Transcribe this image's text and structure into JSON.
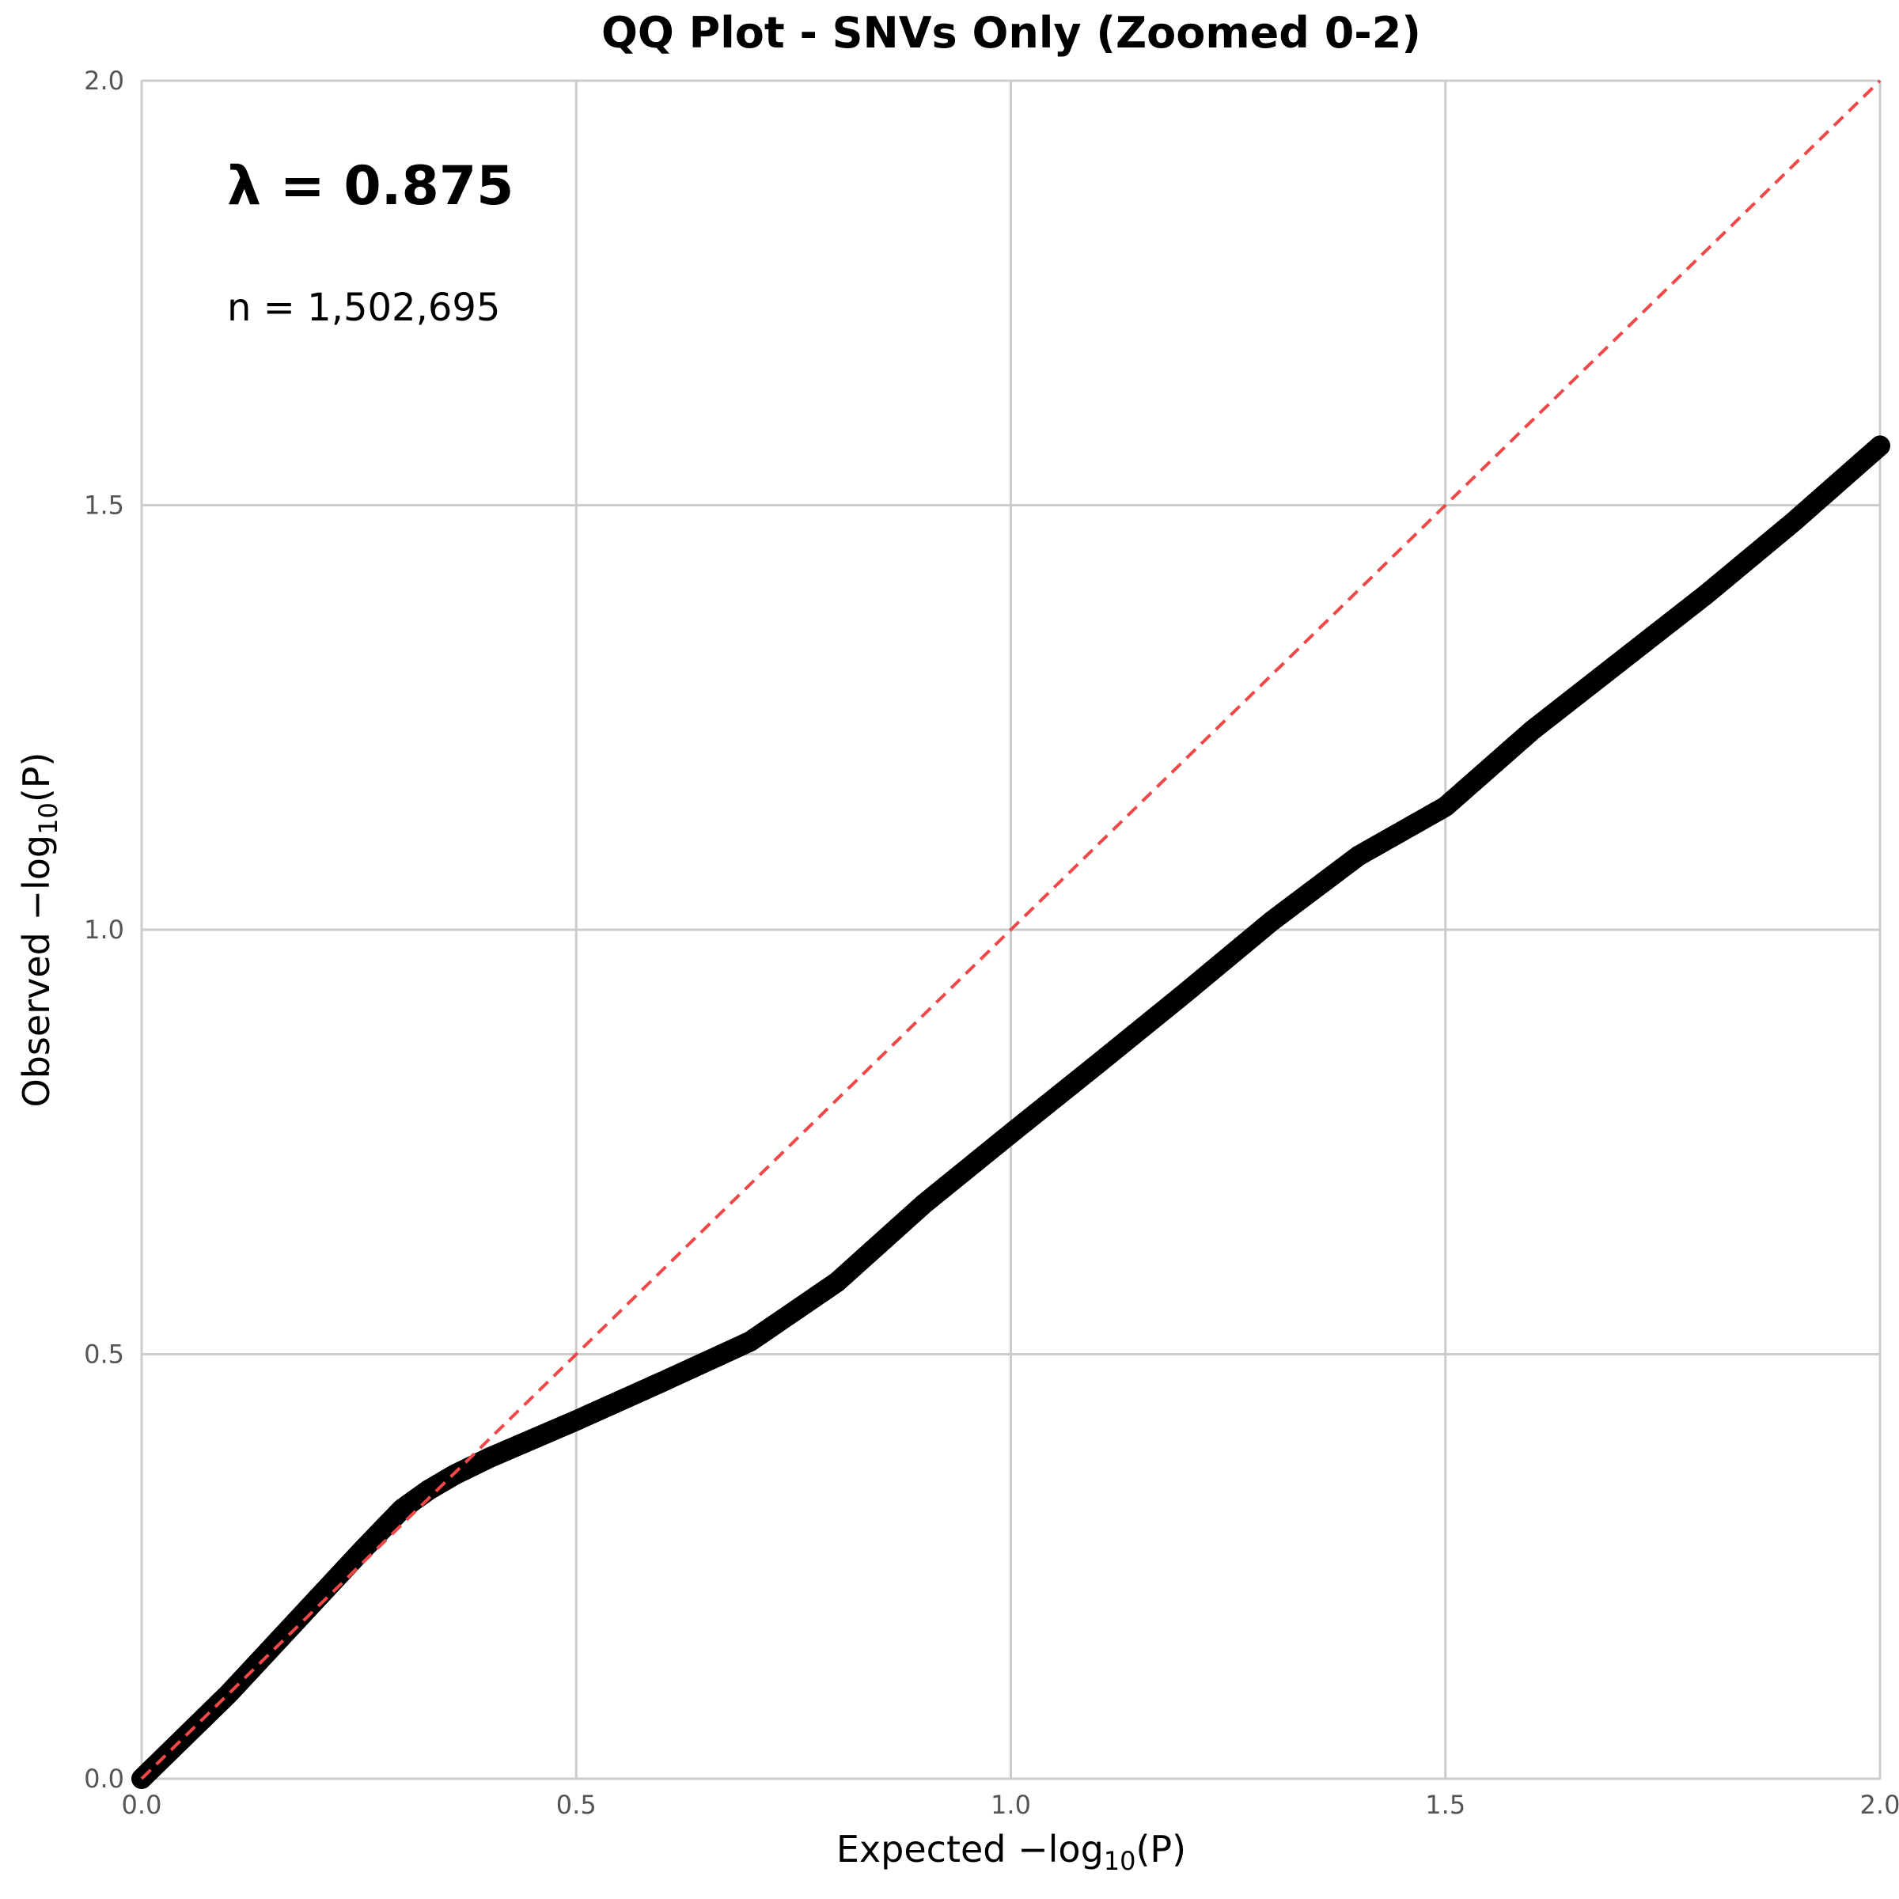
{
  "chart_data": {
    "type": "scatter",
    "title": "QQ Plot - SNVs Only (Zoomed 0-2)",
    "xlabel": {
      "prefix": "Expected −log",
      "sub": "10",
      "suffix": "(P)"
    },
    "ylabel": {
      "prefix": "Observed −log",
      "sub": "10",
      "suffix": "(P)"
    },
    "xlim": [
      0,
      2
    ],
    "ylim": [
      0,
      2
    ],
    "xticks": [
      "0.0",
      "0.5",
      "1.0",
      "1.5",
      "2.0"
    ],
    "yticks": [
      "0.0",
      "0.5",
      "1.0",
      "1.5",
      "2.0"
    ],
    "grid": true,
    "annotations": {
      "lambda": "λ = 0.875",
      "n": "n = 1,502,695"
    },
    "reference_line": {
      "x": [
        0,
        2
      ],
      "y": [
        0,
        2
      ],
      "style": "dashed",
      "color": "#f04848"
    },
    "series": [
      {
        "color": "#000000",
        "x": [
          0.0,
          0.05,
          0.1,
          0.15,
          0.2,
          0.25,
          0.28,
          0.3,
          0.33,
          0.36,
          0.4,
          0.45,
          0.5,
          0.55,
          0.6,
          0.7,
          0.8,
          0.9,
          1.0,
          1.1,
          1.2,
          1.3,
          1.4,
          1.5,
          1.6,
          1.7,
          1.8,
          1.9,
          2.0
        ],
        "y": [
          0.0,
          0.05,
          0.1,
          0.155,
          0.21,
          0.265,
          0.297,
          0.318,
          0.34,
          0.358,
          0.378,
          0.4,
          0.422,
          0.445,
          0.468,
          0.515,
          0.585,
          0.677,
          0.76,
          0.842,
          0.925,
          1.01,
          1.087,
          1.145,
          1.235,
          1.315,
          1.395,
          1.48,
          1.57
        ]
      }
    ],
    "colors": {
      "gridline": "#cccccc",
      "points": "#000000",
      "reference": "#f04848"
    }
  }
}
